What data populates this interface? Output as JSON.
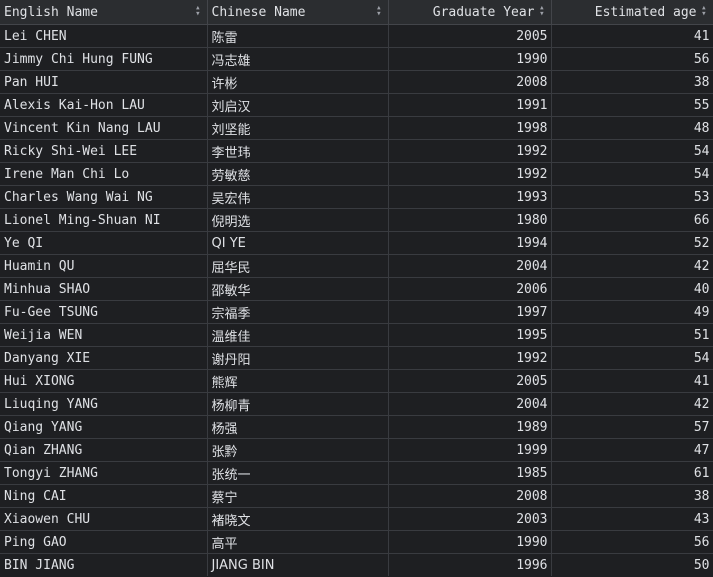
{
  "columns": [
    {
      "label": "English Name",
      "align": "left"
    },
    {
      "label": "Chinese Name",
      "align": "left"
    },
    {
      "label": "Graduate Year",
      "align": "right"
    },
    {
      "label": "Estimated age",
      "align": "right"
    }
  ],
  "rows": [
    [
      "Lei CHEN",
      "陈雷",
      "2005",
      "41"
    ],
    [
      "Jimmy Chi Hung FUNG",
      "冯志雄",
      "1990",
      "56"
    ],
    [
      "Pan HUI",
      "许彬",
      "2008",
      "38"
    ],
    [
      "Alexis Kai-Hon LAU",
      "刘启汉",
      "1991",
      "55"
    ],
    [
      "Vincent Kin Nang LAU",
      "刘坚能",
      "1998",
      "48"
    ],
    [
      "Ricky Shi-Wei LEE",
      "李世玮",
      "1992",
      "54"
    ],
    [
      "Irene Man Chi Lo",
      "劳敏慈",
      "1992",
      "54"
    ],
    [
      "Charles Wang Wai NG",
      "吴宏伟",
      "1993",
      "53"
    ],
    [
      "Lionel Ming-Shuan NI",
      "倪明选",
      "1980",
      "66"
    ],
    [
      "Ye QI",
      "QI YE",
      "1994",
      "52"
    ],
    [
      "Huamin QU",
      "屈华民",
      "2004",
      "42"
    ],
    [
      "Minhua SHAO",
      "邵敏华",
      "2006",
      "40"
    ],
    [
      "Fu-Gee TSUNG",
      "宗福季",
      "1997",
      "49"
    ],
    [
      "Weijia WEN",
      "温维佳",
      "1995",
      "51"
    ],
    [
      "Danyang XIE",
      "谢丹阳",
      "1992",
      "54"
    ],
    [
      "Hui XIONG",
      "熊辉",
      "2005",
      "41"
    ],
    [
      "Liuqing YANG",
      "杨柳青",
      "2004",
      "42"
    ],
    [
      "Qiang YANG",
      "杨强",
      "1989",
      "57"
    ],
    [
      "Qian ZHANG",
      "张黔",
      "1999",
      "47"
    ],
    [
      "Tongyi ZHANG",
      "张统一",
      "1985",
      "61"
    ],
    [
      "Ning CAI",
      "蔡宁",
      "2008",
      "38"
    ],
    [
      "Xiaowen CHU",
      "褚晓文",
      "2003",
      "43"
    ],
    [
      "Ping GAO",
      "高平",
      "1990",
      "56"
    ],
    [
      "BIN JIANG",
      "JIANG BIN",
      "1996",
      "50"
    ]
  ],
  "sort_icon": "sort-arrows-icon"
}
